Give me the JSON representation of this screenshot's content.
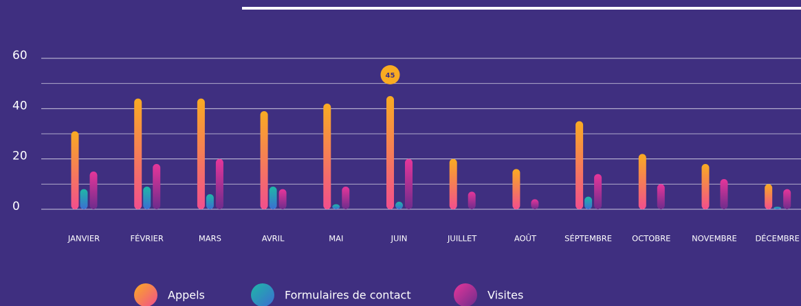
{
  "chart_data": {
    "type": "bar",
    "categories": [
      "JANVIER",
      "FÉVRIER",
      "MARS",
      "AVRIL",
      "MAI",
      "JUIN",
      "JUILLET",
      "AOÛT",
      "SÉPTEMBRE",
      "OCTOBRE",
      "NOVEMBRE",
      "DÉCEMBRE"
    ],
    "series": [
      {
        "name": "Appels",
        "color": "#f9ab22",
        "color2": "#f24f8d",
        "values": [
          31,
          44,
          44,
          39,
          42,
          45,
          20,
          16,
          35,
          22,
          18,
          10
        ]
      },
      {
        "name": "Formulaires de contact",
        "color": "#1fb7a6",
        "color2": "#3b6ed2",
        "values": [
          8,
          9,
          6,
          9,
          2,
          3,
          0,
          0,
          5,
          0,
          0,
          1
        ]
      },
      {
        "name": "Visites",
        "color": "#e6369a",
        "color2": "#6d2c8c",
        "values": [
          15,
          18,
          20,
          8,
          9,
          20,
          7,
          4,
          14,
          10,
          12,
          8
        ]
      }
    ],
    "ylim": [
      0,
      60
    ],
    "yticks": [
      0,
      20,
      40,
      60
    ],
    "minor_yticks": [
      10,
      30,
      50
    ],
    "grid": true,
    "highlight": {
      "series": 0,
      "index": 5
    }
  }
}
